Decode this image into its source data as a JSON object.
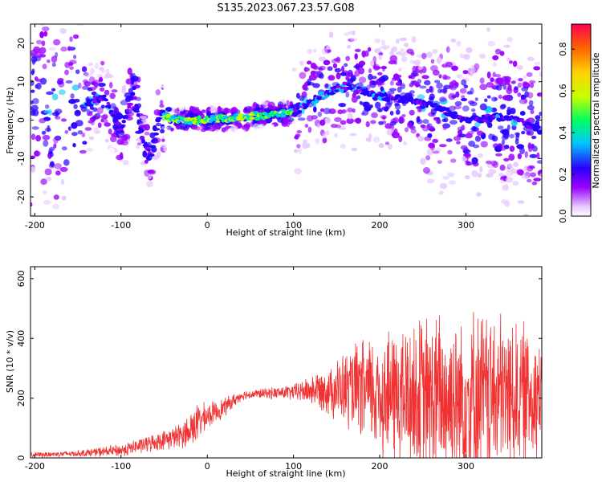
{
  "title": "S135.2023.067.23.57.G08",
  "chart_data": [
    {
      "type": "heatmap",
      "xlabel": "Height of straight line (km)",
      "ylabel": "Frequency (Hz)",
      "xlim": [
        -205,
        388
      ],
      "ylim": [
        -25,
        25
      ],
      "xticks": [
        -200,
        -100,
        0,
        100,
        200,
        300
      ],
      "yticks": [
        -20,
        -10,
        0,
        10,
        20
      ],
      "colorbar": {
        "label": "Normalized spectral amplitude",
        "range": [
          0.0,
          0.92
        ],
        "ticks": [
          "0.0",
          "0.2",
          "0.4",
          "0.6",
          "0.8"
        ],
        "colormap": [
          "#ffffff",
          "#e6c8ff",
          "#9a00ff",
          "#2a00ff",
          "#00c8ff",
          "#00ff60",
          "#c8ff00",
          "#ffd000",
          "#ff6000",
          "#ff0050"
        ]
      },
      "ridge": {
        "x": [
          -140,
          -120,
          -100,
          -85,
          -75,
          -65,
          -55,
          -40,
          0,
          50,
          100,
          130,
          160,
          200,
          250,
          300,
          350,
          388
        ],
        "y": [
          4,
          6,
          -3,
          8,
          -5,
          -9,
          2,
          0,
          0,
          1,
          2,
          6,
          9,
          6,
          5,
          0,
          1,
          -3
        ]
      }
    },
    {
      "type": "line",
      "xlabel": "Height of straight line (km)",
      "ylabel": "SNR (10 * v/v)",
      "xlim": [
        -205,
        388
      ],
      "ylim": [
        0,
        640
      ],
      "xticks": [
        -200,
        -100,
        0,
        100,
        200,
        300
      ],
      "yticks": [
        0,
        200,
        400,
        600
      ],
      "color": "#f03232",
      "envelope": {
        "x": [
          -205,
          -150,
          -100,
          -50,
          -30,
          -20,
          -10,
          0,
          20,
          40,
          60,
          100,
          130,
          160,
          200,
          250,
          300,
          350,
          388
        ],
        "mean": [
          10,
          15,
          25,
          60,
          75,
          100,
          120,
          140,
          170,
          210,
          215,
          220,
          230,
          230,
          215,
          200,
          200,
          210,
          220
        ],
        "spread": [
          8,
          10,
          20,
          30,
          40,
          60,
          60,
          40,
          30,
          15,
          15,
          25,
          60,
          120,
          200,
          260,
          300,
          250,
          200
        ]
      }
    }
  ]
}
